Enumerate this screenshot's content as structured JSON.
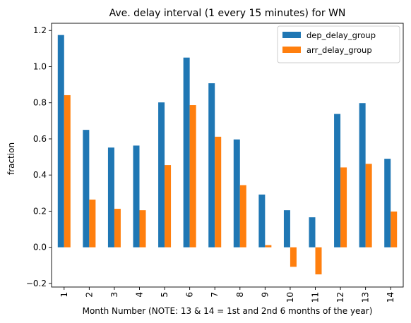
{
  "chart_data": {
    "type": "bar",
    "title": "Ave. delay interval (1 every 15 minutes) for WN",
    "xlabel": "Month Number (NOTE: 13 & 14 = 1st and 2nd 6 months of the year)",
    "ylabel": "fraction",
    "categories": [
      "1",
      "2",
      "3",
      "4",
      "5",
      "6",
      "7",
      "8",
      "9",
      "10",
      "11",
      "12",
      "13",
      "14"
    ],
    "series": [
      {
        "name": "dep_delay_group",
        "color": "#1f77b4",
        "values": [
          1.175,
          0.65,
          0.552,
          0.563,
          0.802,
          1.05,
          0.908,
          0.597,
          0.292,
          0.205,
          0.166,
          0.738,
          0.798,
          0.49
        ]
      },
      {
        "name": "arr_delay_group",
        "color": "#ff7f0e",
        "values": [
          0.842,
          0.264,
          0.213,
          0.205,
          0.455,
          0.787,
          0.612,
          0.344,
          0.012,
          -0.108,
          -0.15,
          0.442,
          0.462,
          0.198
        ]
      }
    ],
    "ylim": [
      -0.22,
      1.24
    ],
    "yticks": [
      -0.2,
      0.0,
      0.2,
      0.4,
      0.6,
      0.8,
      1.0,
      1.2
    ],
    "ytick_labels": [
      "−0.2",
      "0.0",
      "0.2",
      "0.4",
      "0.6",
      "0.8",
      "1.0",
      "1.2"
    ],
    "grid": false,
    "legend_position": "top-right"
  }
}
